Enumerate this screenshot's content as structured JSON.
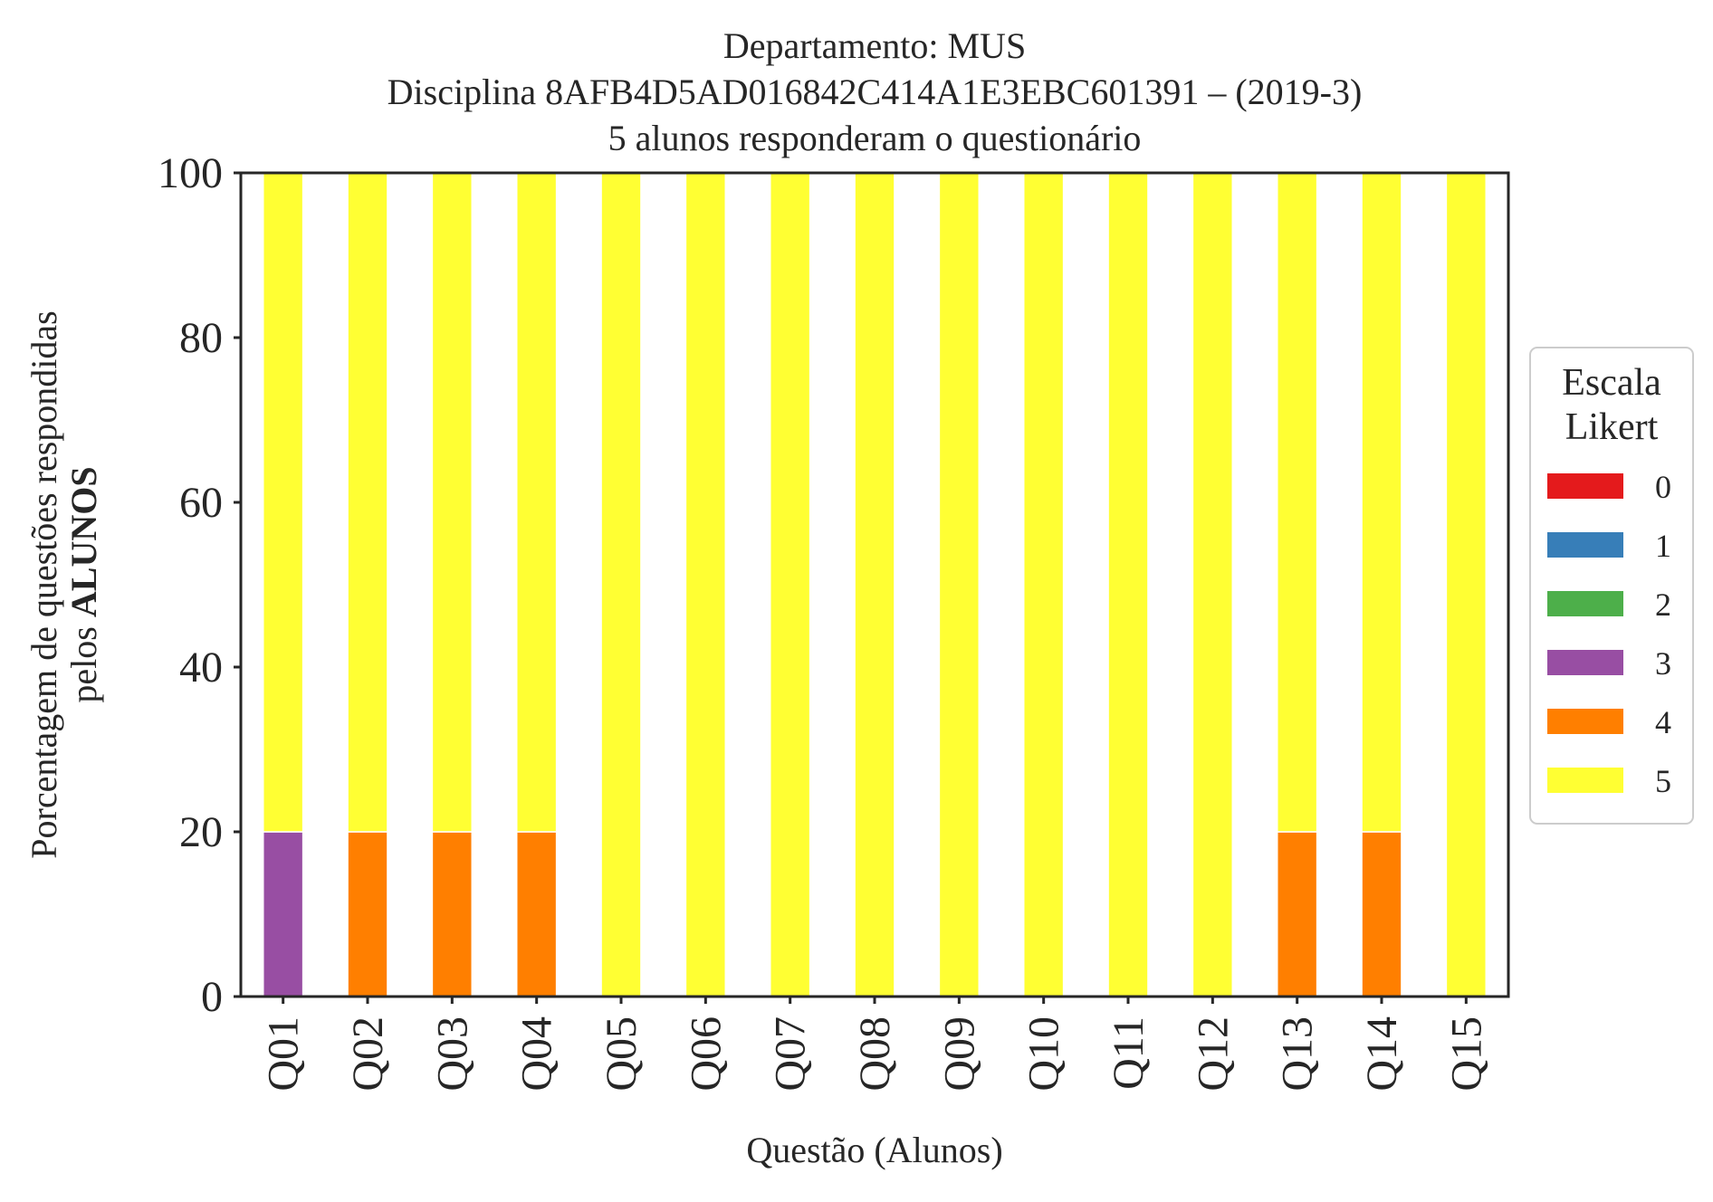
{
  "chart_data": {
    "type": "bar",
    "stacked": true,
    "title": [
      "Departamento: MUS",
      "Disciplina 8AFB4D5AD016842C414A1E3EBC601391 – (2019-3)",
      "5 alunos responderam o questionário"
    ],
    "xlabel": "Questão (Alunos)",
    "ylabel_line1": "Porcentagem de questões respondidas",
    "ylabel_line2_prefix": "pelos ",
    "ylabel_line2_bold": "ALUNOS",
    "ylim": [
      0,
      100
    ],
    "yticks": [
      0,
      20,
      40,
      60,
      80,
      100
    ],
    "categories": [
      "Q01",
      "Q02",
      "Q03",
      "Q04",
      "Q05",
      "Q06",
      "Q07",
      "Q08",
      "Q09",
      "Q10",
      "Q11",
      "Q12",
      "Q13",
      "Q14",
      "Q15"
    ],
    "legend": {
      "title_line1": "Escala",
      "title_line2": "Likert",
      "placement": "right-center"
    },
    "series": [
      {
        "name": "0",
        "color": "#e41a1c",
        "values": [
          0,
          0,
          0,
          0,
          0,
          0,
          0,
          0,
          0,
          0,
          0,
          0,
          0,
          0,
          0
        ]
      },
      {
        "name": "1",
        "color": "#377eb8",
        "values": [
          0,
          0,
          0,
          0,
          0,
          0,
          0,
          0,
          0,
          0,
          0,
          0,
          0,
          0,
          0
        ]
      },
      {
        "name": "2",
        "color": "#4daf4a",
        "values": [
          0,
          0,
          0,
          0,
          0,
          0,
          0,
          0,
          0,
          0,
          0,
          0,
          0,
          0,
          0
        ]
      },
      {
        "name": "3",
        "color": "#984ea3",
        "values": [
          20,
          0,
          0,
          0,
          0,
          0,
          0,
          0,
          0,
          0,
          0,
          0,
          0,
          0,
          0
        ]
      },
      {
        "name": "4",
        "color": "#ff7f00",
        "values": [
          0,
          20,
          20,
          20,
          0,
          0,
          0,
          0,
          0,
          0,
          0,
          0,
          20,
          20,
          0
        ]
      },
      {
        "name": "5",
        "color": "#ffff33",
        "values": [
          80,
          80,
          80,
          80,
          100,
          100,
          100,
          100,
          100,
          100,
          100,
          100,
          80,
          80,
          100
        ]
      }
    ],
    "grid": false
  }
}
